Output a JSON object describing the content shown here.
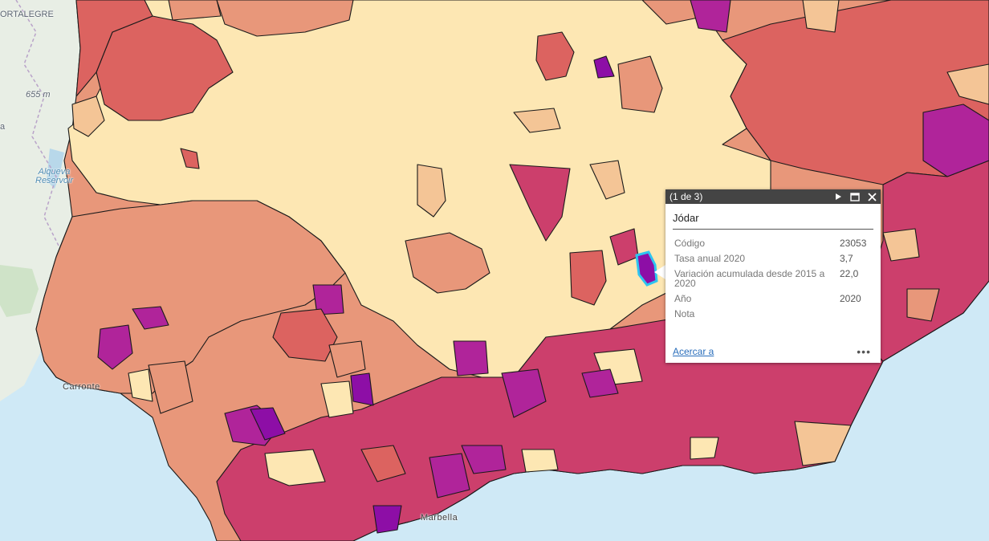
{
  "map": {
    "labels": {
      "portalegre": "ORTALEGRE",
      "elevation": "655 m",
      "reservoir": "Alqueva\nReservoir",
      "left_edge": "a",
      "town_sw": "Carronte",
      "marbella": "Marbella"
    },
    "colors": {
      "sea": "#cfe9f6",
      "land_base": "#e9efe6",
      "class_1": "#fde7b3",
      "class_2": "#f4c596",
      "class_3": "#e8977a",
      "class_4": "#dc6360",
      "class_5": "#cc3f6c",
      "class_6": "#b0249a",
      "class_7": "#8d0ea6",
      "selection": "#2ec4f0"
    }
  },
  "popup": {
    "pager": "(1 de 3)",
    "title": "Jódar",
    "attributes": [
      {
        "label": "Código",
        "value": "23053"
      },
      {
        "label": "Tasa anual 2020",
        "value": "3,7"
      },
      {
        "label": "Variación acumulada desde 2015 a 2020",
        "value": "22,0"
      },
      {
        "label": "Año",
        "value": "2020"
      },
      {
        "label": "Nota",
        "value": ""
      }
    ],
    "zoom_link": "Acercar a",
    "more": "•••",
    "icons": [
      "play-icon",
      "maximize-icon",
      "close-icon"
    ]
  }
}
